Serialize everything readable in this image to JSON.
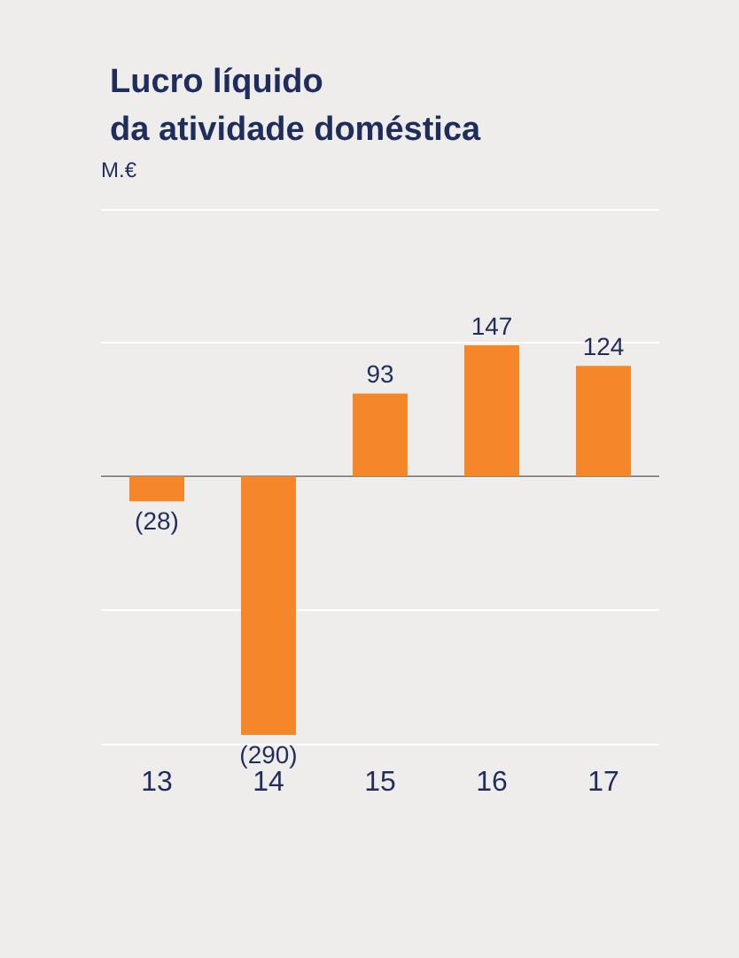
{
  "chart_data": {
    "type": "bar",
    "title": "Lucro líquido\nda atividade doméstica",
    "ylabel": "M.€",
    "categories": [
      "13",
      "14",
      "15",
      "16",
      "17"
    ],
    "values": [
      -28,
      -290,
      93,
      147,
      124
    ],
    "value_labels": [
      "(28)",
      "(290)",
      "93",
      "147",
      "124"
    ],
    "color": "#f5872a",
    "ylim": [
      -300,
      300
    ],
    "yticks": [
      {
        "value": -300,
        "label": null
      },
      {
        "value": -150,
        "label": null
      },
      {
        "value": 0,
        "label": null
      },
      {
        "value": 150,
        "label": null
      },
      {
        "value": 300,
        "label": null
      }
    ],
    "grid": "y",
    "tick_labels": "x"
  }
}
